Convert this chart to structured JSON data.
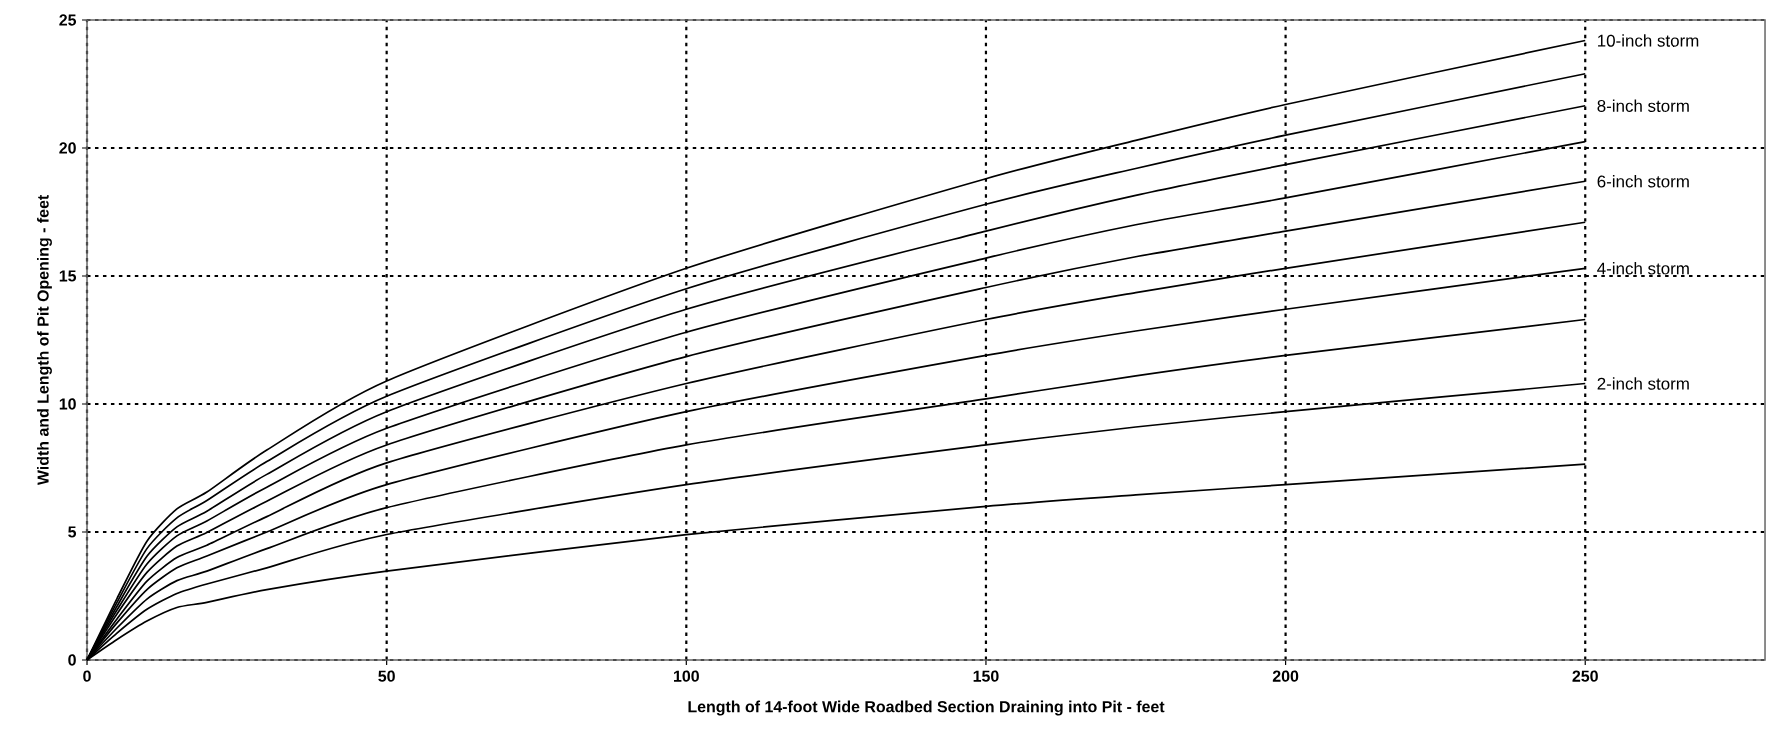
{
  "chart_data": {
    "type": "line",
    "xlabel": "Length of 14-foot Wide Roadbed Section Draining into Pit - feet",
    "ylabel": "Width and Length of Pit Opening - feet",
    "x": [
      0,
      5,
      10,
      15,
      20,
      30,
      50,
      100,
      150,
      175,
      200,
      250
    ],
    "series": [
      {
        "name": "10-inch storm",
        "color": "#000000",
        "values": [
          0,
          2.4,
          4.64,
          5.9,
          6.56,
          8.2,
          10.9,
          15.3,
          18.8,
          20.3,
          21.7,
          24.2
        ]
      },
      {
        "color": "#000000",
        "values": [
          0,
          2.25,
          4.35,
          5.55,
          6.23,
          7.75,
          10.3,
          14.5,
          17.8,
          19.2,
          20.5,
          22.9
        ]
      },
      {
        "name": "8-inch storm",
        "color": "#000000",
        "values": [
          0,
          2.1,
          4.05,
          5.2,
          5.81,
          7.25,
          9.7,
          13.7,
          16.75,
          18.15,
          19.35,
          21.65
        ]
      },
      {
        "color": "#000000",
        "values": [
          0,
          1.95,
          3.75,
          4.85,
          5.43,
          6.75,
          9.05,
          12.8,
          15.7,
          17.0,
          18.05,
          20.25
        ]
      },
      {
        "name": "6-inch storm",
        "color": "#000000",
        "values": [
          0,
          1.8,
          3.42,
          4.45,
          4.98,
          6.2,
          8.4,
          11.85,
          14.55,
          15.75,
          16.75,
          18.7
        ]
      },
      {
        "color": "#000000",
        "values": [
          0,
          1.6,
          3.08,
          4.0,
          4.48,
          5.6,
          7.7,
          10.8,
          13.3,
          14.35,
          15.3,
          17.1
        ]
      },
      {
        "name": "4-inch storm",
        "color": "#000000",
        "values": [
          0,
          1.45,
          2.75,
          3.6,
          4.06,
          5.0,
          6.85,
          9.7,
          11.9,
          12.85,
          13.7,
          15.3
        ]
      },
      {
        "color": "#000000",
        "values": [
          0,
          1.25,
          2.38,
          3.1,
          3.47,
          4.35,
          5.95,
          8.4,
          10.2,
          11.1,
          11.9,
          13.3
        ]
      },
      {
        "name": "2-inch storm",
        "color": "#000000",
        "values": [
          0,
          1.05,
          1.98,
          2.6,
          2.97,
          3.6,
          4.9,
          6.85,
          8.4,
          9.1,
          9.7,
          10.8
        ]
      },
      {
        "color": "#000000",
        "values": [
          0,
          0.8,
          1.52,
          2.05,
          2.25,
          2.75,
          3.47,
          4.9,
          6.0,
          6.45,
          6.85,
          7.65
        ]
      }
    ],
    "xlim": [
      0,
      280
    ],
    "ylim": [
      0,
      25
    ],
    "xticks": [
      0,
      50,
      100,
      150,
      200,
      250
    ],
    "yticks": [
      0,
      5,
      10,
      15,
      20,
      25
    ],
    "grid": true
  }
}
